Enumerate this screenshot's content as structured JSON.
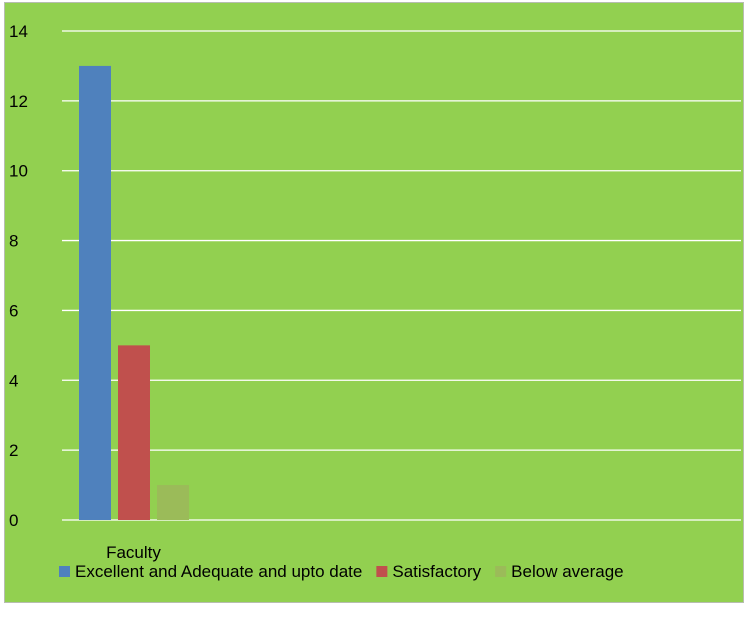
{
  "chart_data": {
    "type": "bar",
    "title": "",
    "xlabel": "",
    "ylabel": "",
    "categories": [
      "Faculty"
    ],
    "series": [
      {
        "name": "Excellent and Adequate and upto date",
        "values": [
          13
        ],
        "color": "#4f81bd"
      },
      {
        "name": "Satisfactory",
        "values": [
          5
        ],
        "color": "#c0504d"
      },
      {
        "name": "Below average",
        "values": [
          1
        ],
        "color": "#9bbb59"
      }
    ],
    "ylim": [
      0,
      14
    ],
    "yticks": [
      "0",
      "2",
      "4",
      "6",
      "8",
      "10",
      "12",
      "14"
    ],
    "grid": true,
    "legend_position": "bottom"
  },
  "colors": {
    "background": "#92d050",
    "gridline": "#ffffff",
    "text": "#000000"
  }
}
